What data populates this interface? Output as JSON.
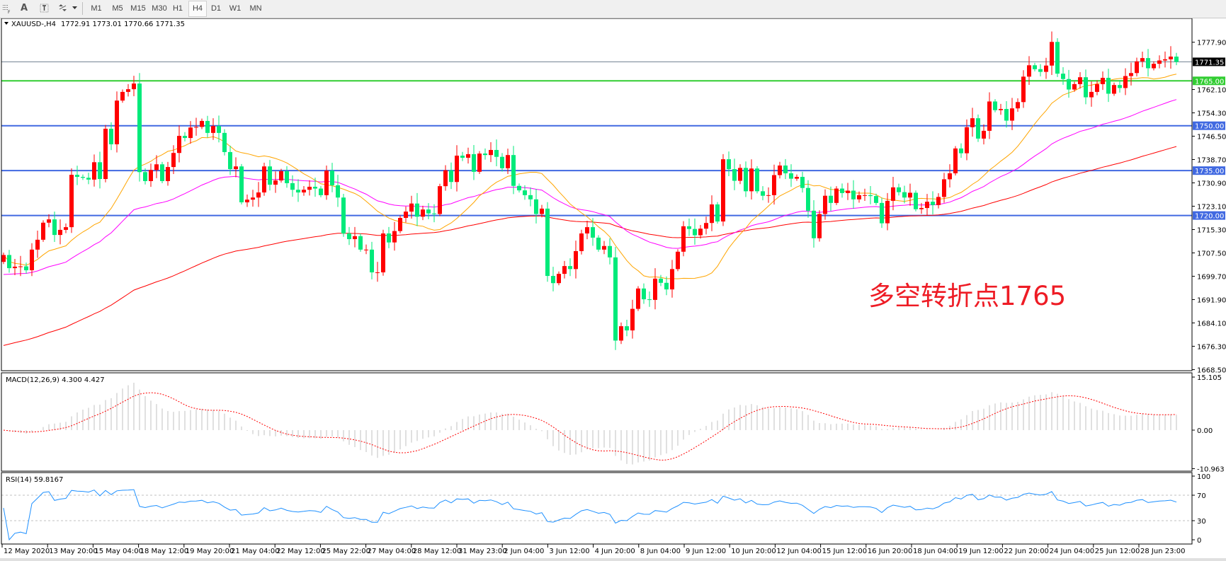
{
  "toolbar": {
    "icons": [
      "grid-icon",
      "text-a-icon",
      "text-label-icon",
      "shapes-icon",
      "dropdown-arrow-icon"
    ],
    "text_a": "A",
    "timeframes": [
      "M1",
      "M5",
      "M15",
      "M30",
      "H1",
      "H4",
      "D1",
      "W1",
      "MN"
    ],
    "active_timeframe": "H4"
  },
  "header": {
    "symbol": "XAUUSD-,H4",
    "ohlc": "1772.91 1773.01 1770.66 1771.35"
  },
  "annotation": {
    "text": "多空转折点1765",
    "color": "#ee1c25"
  },
  "colors": {
    "up": "#ff0000",
    "down": "#00ea7a",
    "level_green": "#32cd32",
    "level_blue": "#4169e1",
    "ma_fast": "#ffa500",
    "ma_mid": "#ff00ff",
    "ma_slow": "#ff0000",
    "macd_hist": "#c0c0c0",
    "macd_signal": "#ff0000",
    "rsi": "#1e90ff"
  },
  "chart_data": [
    {
      "type": "candlestick",
      "symbol": "XAUUSD-",
      "timeframe": "H4",
      "first_open": 1704.5,
      "closes": [
        1706.8,
        1702.4,
        1702.9,
        1703,
        1701.7,
        1708.6,
        1711.9,
        1717.6,
        1718.7,
        1713.5,
        1715.2,
        1716.1,
        1733.6,
        1732.9,
        1732.6,
        1732,
        1737.8,
        1732.2,
        1749,
        1743.8,
        1758.4,
        1761.3,
        1762.2,
        1764.1,
        1734.5,
        1731.5,
        1735.2,
        1737.1,
        1731.5,
        1736.2,
        1740.9,
        1746.6,
        1745.9,
        1749.4,
        1749.6,
        1751.6,
        1747.6,
        1749.9,
        1747.6,
        1741.2,
        1735.5,
        1736.4,
        1724.4,
        1725.3,
        1726,
        1727.7,
        1736.4,
        1730.3,
        1731.7,
        1734.8,
        1730.8,
        1728.6,
        1727.7,
        1728.6,
        1729.6,
        1729,
        1726.8,
        1735,
        1730.1,
        1726,
        1714,
        1712.1,
        1713.1,
        1708.6,
        1708.6,
        1701,
        1701,
        1714,
        1711,
        1714.8,
        1719.2,
        1721.3,
        1724,
        1719.6,
        1722,
        1720.7,
        1720.5,
        1729.8,
        1735.1,
        1731.2,
        1740,
        1739.3,
        1740.5,
        1734.6,
        1740.7,
        1740.2,
        1741.9,
        1739.6,
        1735.8,
        1740.2,
        1729.9,
        1728.4,
        1726.8,
        1725.4,
        1720.5,
        1722.3,
        1699.8,
        1697.4,
        1700.5,
        1703.1,
        1702.1,
        1708.1,
        1714,
        1716.1,
        1712.6,
        1708.6,
        1709.8,
        1706,
        1678.2,
        1683,
        1681.6,
        1688.8,
        1695.6,
        1692,
        1691.8,
        1698.9,
        1697.5,
        1695.3,
        1702.1,
        1707.9,
        1716.4,
        1715.5,
        1713.4,
        1715.6,
        1717.5,
        1723.7,
        1718,
        1738.8,
        1735.5,
        1731.6,
        1735.9,
        1728.1,
        1735.7,
        1728.1,
        1726.6,
        1726.8,
        1733.5,
        1736.7,
        1734.1,
        1732.3,
        1732.9,
        1729.2,
        1721.6,
        1712.4,
        1720.5,
        1726.6,
        1724.2,
        1729,
        1727.5,
        1728.3,
        1725.4,
        1726.8,
        1726.8,
        1726.5,
        1724.2,
        1717.4,
        1724.9,
        1729.4,
        1727.8,
        1726,
        1727.6,
        1722.1,
        1722.5,
        1724.6,
        1723.5,
        1726.2,
        1732.1,
        1734.1,
        1742.4,
        1740.8,
        1749.5,
        1752.5,
        1745.7,
        1748.3,
        1758.1,
        1755.2,
        1755.6,
        1751.7,
        1755.8,
        1757.9,
        1766.4,
        1770.2,
        1768.9,
        1768,
        1770.1,
        1778,
        1767.4,
        1765.6,
        1762.1,
        1763.9,
        1766.2,
        1759.5,
        1761.3,
        1763.9,
        1766,
        1760.7,
        1763.6,
        1762.6,
        1766.6,
        1767.6,
        1771.5,
        1772.6,
        1769.2,
        1770.7,
        1771.8,
        1772.2,
        1773.1,
        1771.35
      ],
      "price_ticks": [
        "1777.90",
        "1762.10",
        "1754.30",
        "1746.50",
        "1738.70",
        "1730.90",
        "1723.10",
        "1715.30",
        "1707.50",
        "1699.70",
        "1691.90",
        "1684.10",
        "1676.30",
        "1668.50"
      ],
      "ylim": [
        1668.1,
        1785.6
      ],
      "current_price": "1771.35",
      "levels": [
        {
          "value": 1765.0,
          "label": "1765.00",
          "color": "#32cd32"
        },
        {
          "value": 1750.0,
          "label": "1750.00",
          "color": "#4169e1"
        },
        {
          "value": 1735.0,
          "label": "1735.00",
          "color": "#4169e1"
        },
        {
          "value": 1720.0,
          "label": "1720.00",
          "color": "#4169e1"
        }
      ],
      "time_labels": [
        "12 May 2020",
        "13 May 20:00",
        "15 May 04:00",
        "18 May 12:00",
        "19 May 20:00",
        "21 May 04:00",
        "22 May 12:00",
        "25 May 22:00",
        "27 May 04:00",
        "28 May 12:00",
        "31 May 23:00",
        "2 Jun 04:00",
        "3 Jun 12:00",
        "4 Jun 20:00",
        "8 Jun 04:00",
        "9 Jun 12:00",
        "10 Jun 20:00",
        "12 Jun 04:00",
        "15 Jun 12:00",
        "16 Jun 20:00",
        "18 Jun 04:00",
        "19 Jun 12:00",
        "22 Jun 20:00",
        "24 Jun 04:00",
        "25 Jun 12:00",
        "28 Jun 23:00"
      ]
    },
    {
      "type": "macd",
      "label": "MACD(12,26,9) 4.300 4.427",
      "ticks": [
        "15.105",
        "0.00",
        "-10.963"
      ],
      "ylim": [
        -10.963,
        15.105
      ]
    },
    {
      "type": "rsi",
      "label": "RSI(14) 59.8167",
      "ticks": [
        "100",
        "70",
        "30",
        "0"
      ],
      "levels": [
        70,
        30
      ],
      "ylim": [
        0,
        100
      ]
    }
  ]
}
